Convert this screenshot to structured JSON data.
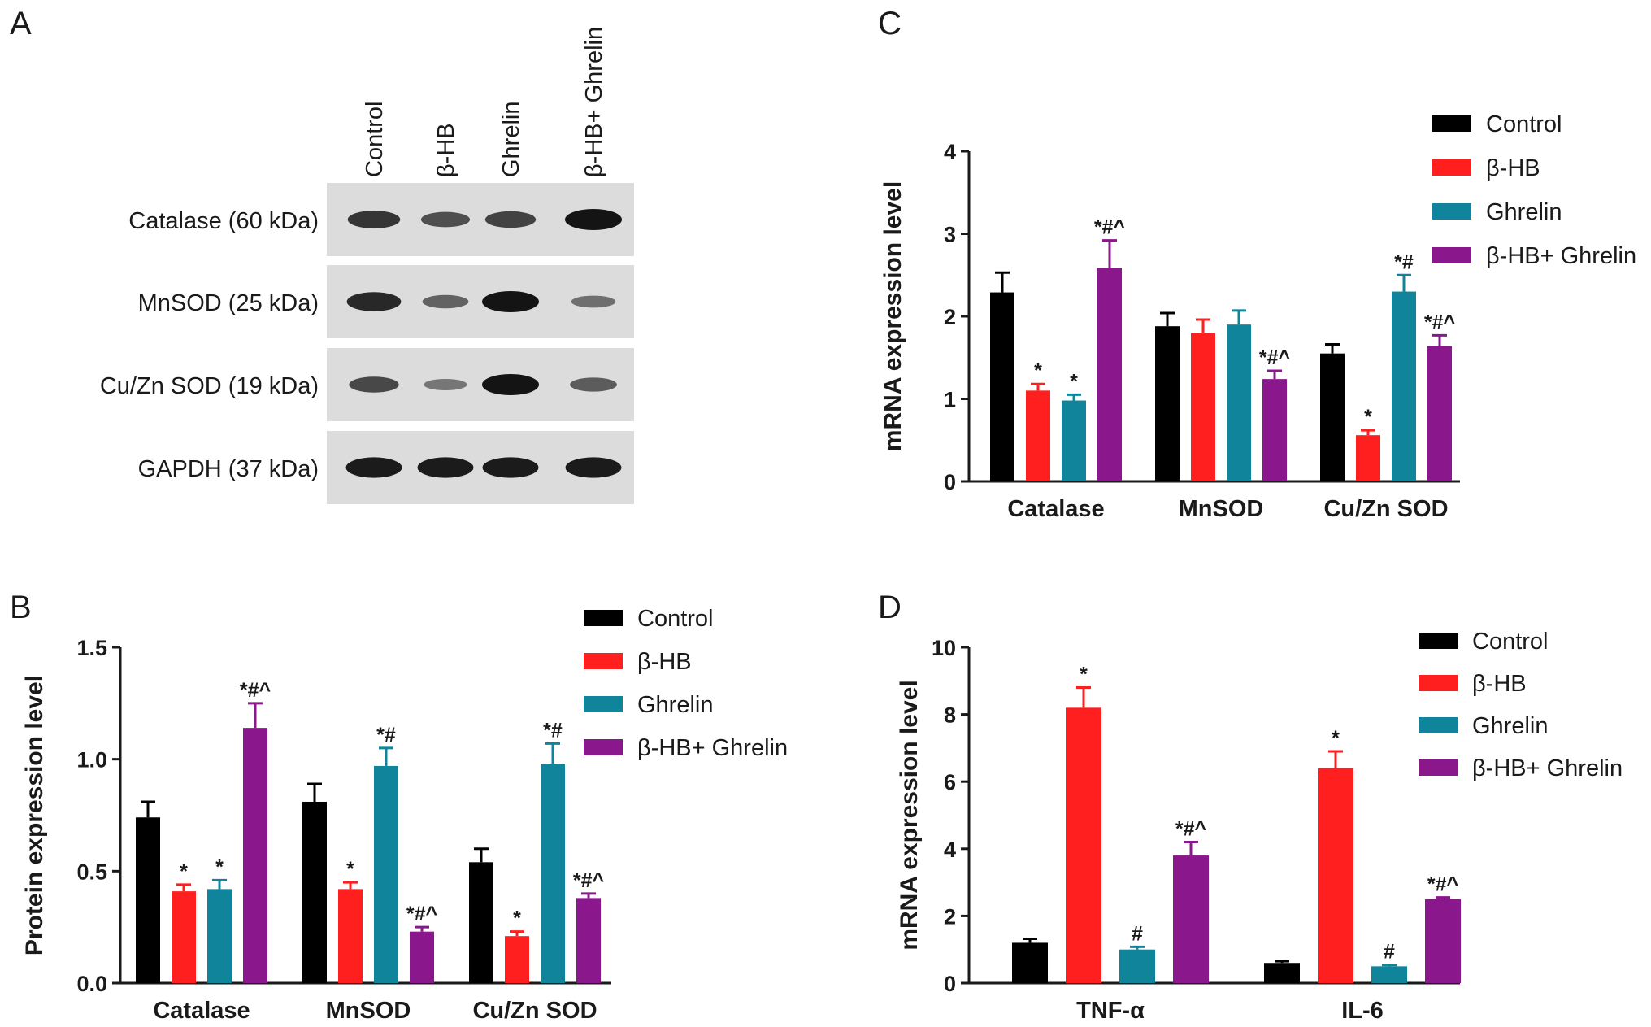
{
  "colors": {
    "control": "#000000",
    "bhb": "#ff1f1f",
    "ghrelin": "#10849a",
    "bhb_ghrelin": "#8b178c",
    "axis": "#1a1a1a"
  },
  "panels": {
    "a": {
      "letter": "A"
    },
    "b": {
      "letter": "B"
    },
    "c": {
      "letter": "C"
    },
    "d": {
      "letter": "D"
    }
  },
  "western_blot": {
    "lanes": [
      "Control",
      "β-HB",
      "Ghrelin",
      "β-HB+ Ghrelin"
    ],
    "rows": [
      {
        "label": "Catalase (60 kDa)",
        "intensity": [
          0.75,
          0.55,
          0.65,
          1.0
        ]
      },
      {
        "label": "MnSOD (25 kDa)",
        "intensity": [
          0.85,
          0.4,
          1.0,
          0.3
        ]
      },
      {
        "label": "Cu/Zn SOD (19 kDa)",
        "intensity": [
          0.6,
          0.25,
          1.0,
          0.45
        ]
      },
      {
        "label": "GAPDH (37 kDa)",
        "intensity": [
          0.95,
          0.95,
          0.95,
          0.95
        ]
      }
    ]
  },
  "chart_data": [
    {
      "panel": "B",
      "type": "bar",
      "ylabel": "Protein expression level",
      "categories": [
        "Catalase",
        "MnSOD",
        "Cu/Zn SOD"
      ],
      "ylim": [
        0,
        1.5
      ],
      "yticks": [
        "0.0",
        "0.5",
        "1.0",
        "1.5"
      ],
      "legend_position": "top-right",
      "series": [
        {
          "name": "Control",
          "values": [
            0.74,
            0.81,
            0.54
          ],
          "errors": [
            0.07,
            0.08,
            0.06
          ],
          "marks": [
            "",
            "",
            ""
          ]
        },
        {
          "name": "β-HB",
          "values": [
            0.41,
            0.42,
            0.21
          ],
          "errors": [
            0.03,
            0.03,
            0.02
          ],
          "marks": [
            "*",
            "*",
            "*"
          ]
        },
        {
          "name": "Ghrelin",
          "values": [
            0.42,
            0.97,
            0.98
          ],
          "errors": [
            0.04,
            0.08,
            0.09
          ],
          "marks": [
            "*",
            "*#",
            "*#"
          ]
        },
        {
          "name": "β-HB+ Ghrelin",
          "values": [
            1.14,
            0.23,
            0.38
          ],
          "errors": [
            0.11,
            0.02,
            0.02
          ],
          "marks": [
            "*#^",
            "*#^",
            "*#^"
          ]
        }
      ]
    },
    {
      "panel": "C",
      "type": "bar",
      "ylabel": "mRNA expression level",
      "categories": [
        "Catalase",
        "MnSOD",
        "Cu/Zn SOD"
      ],
      "ylim": [
        0,
        4
      ],
      "yticks": [
        "0",
        "1",
        "2",
        "3",
        "4"
      ],
      "legend_position": "top-right",
      "series": [
        {
          "name": "Control",
          "values": [
            2.29,
            1.88,
            1.55
          ],
          "errors": [
            0.24,
            0.16,
            0.11
          ],
          "marks": [
            "",
            "",
            ""
          ]
        },
        {
          "name": "β-HB",
          "values": [
            1.1,
            1.8,
            0.56
          ],
          "errors": [
            0.08,
            0.16,
            0.06
          ],
          "marks": [
            "*",
            "",
            "*"
          ]
        },
        {
          "name": "Ghrelin",
          "values": [
            0.98,
            1.9,
            2.3
          ],
          "errors": [
            0.07,
            0.17,
            0.2
          ],
          "marks": [
            "*",
            "",
            "*#"
          ]
        },
        {
          "name": "β-HB+ Ghrelin",
          "values": [
            2.59,
            1.24,
            1.64
          ],
          "errors": [
            0.33,
            0.1,
            0.13
          ],
          "marks": [
            "*#^",
            "*#^",
            "*#^"
          ]
        }
      ]
    },
    {
      "panel": "D",
      "type": "bar",
      "ylabel": "mRNA expression level",
      "categories": [
        "TNF-α",
        "IL-6"
      ],
      "ylim": [
        0,
        10
      ],
      "yticks": [
        "0",
        "2",
        "4",
        "6",
        "8",
        "10"
      ],
      "legend_position": "top-right",
      "series": [
        {
          "name": "Control",
          "values": [
            1.2,
            0.6
          ],
          "errors": [
            0.12,
            0.05
          ],
          "marks": [
            "",
            ""
          ]
        },
        {
          "name": "β-HB",
          "values": [
            8.2,
            6.4
          ],
          "errors": [
            0.6,
            0.5
          ],
          "marks": [
            "*",
            "*"
          ]
        },
        {
          "name": "Ghrelin",
          "values": [
            1.0,
            0.5
          ],
          "errors": [
            0.08,
            0.04
          ],
          "marks": [
            "#",
            "#"
          ]
        },
        {
          "name": "β-HB+ Ghrelin",
          "values": [
            3.8,
            2.5
          ],
          "errors": [
            0.4,
            0.05
          ],
          "marks": [
            "*#^",
            "*#^"
          ]
        }
      ]
    }
  ]
}
